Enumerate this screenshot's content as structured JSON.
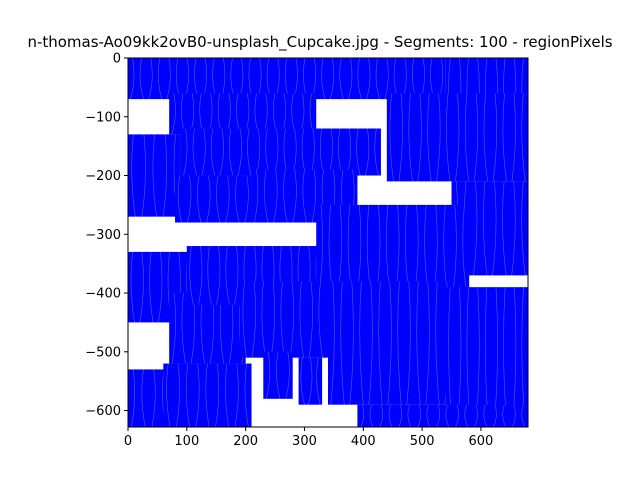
{
  "chart_data": {
    "type": "area",
    "title": "n-thomas-Ao09kk2ovB0-unsplash_Cupcake.jpg - Segments: 100 - regionPixels",
    "xlabel": "",
    "ylabel": "",
    "xlim": [
      0,
      680
    ],
    "ylim": [
      -628,
      0
    ],
    "xticks": [
      0,
      100,
      200,
      300,
      400,
      500,
      600
    ],
    "yticks": [
      0,
      -100,
      -200,
      -300,
      -400,
      -500,
      -600
    ],
    "xtick_labels": [
      "0",
      "100",
      "200",
      "300",
      "400",
      "500",
      "600"
    ],
    "ytick_labels": [
      "0",
      "−100",
      "−200",
      "−300",
      "−400",
      "−500",
      "−600"
    ],
    "grid": false,
    "legend": "none",
    "colors": {
      "fill": "#0000ff",
      "background": "#ffffff",
      "axes": "#000000"
    },
    "regions": [
      {
        "x": [
          0,
          540
        ],
        "y": [
          -70,
          0
        ]
      },
      {
        "x": [
          540,
          680
        ],
        "y": [
          -130,
          0
        ]
      },
      {
        "x": [
          70,
          320
        ],
        "y": [
          -130,
          -60
        ]
      },
      {
        "x": [
          0,
          90
        ],
        "y": [
          -270,
          -130
        ]
      },
      {
        "x": [
          90,
          430
        ],
        "y": [
          -200,
          -120
        ]
      },
      {
        "x": [
          80,
          210
        ],
        "y": [
          -280,
          -200
        ]
      },
      {
        "x": [
          210,
          390
        ],
        "y": [
          -280,
          -190
        ]
      },
      {
        "x": [
          440,
          680
        ],
        "y": [
          -210,
          -60
        ]
      },
      {
        "x": [
          550,
          680
        ],
        "y": [
          -370,
          -210
        ]
      },
      {
        "x": [
          0,
          110
        ],
        "y": [
          -450,
          -330
        ]
      },
      {
        "x": [
          70,
          200
        ],
        "y": [
          -520,
          -400
        ]
      },
      {
        "x": [
          100,
          330
        ],
        "y": [
          -420,
          -320
        ]
      },
      {
        "x": [
          320,
          580
        ],
        "y": [
          -400,
          -250
        ]
      },
      {
        "x": [
          190,
          400
        ],
        "y": [
          -510,
          -380
        ]
      },
      {
        "x": [
          230,
          280
        ],
        "y": [
          -580,
          -500
        ]
      },
      {
        "x": [
          290,
          330
        ],
        "y": [
          -590,
          -510
        ]
      },
      {
        "x": [
          340,
          550
        ],
        "y": [
          -590,
          -380
        ]
      },
      {
        "x": [
          540,
          680
        ],
        "y": [
          -630,
          -390
        ]
      },
      {
        "x": [
          0,
          70
        ],
        "y": [
          -630,
          -530
        ]
      },
      {
        "x": [
          60,
          210
        ],
        "y": [
          -630,
          -520
        ]
      },
      {
        "x": [
          390,
          680
        ],
        "y": [
          -630,
          -590
        ]
      }
    ]
  }
}
